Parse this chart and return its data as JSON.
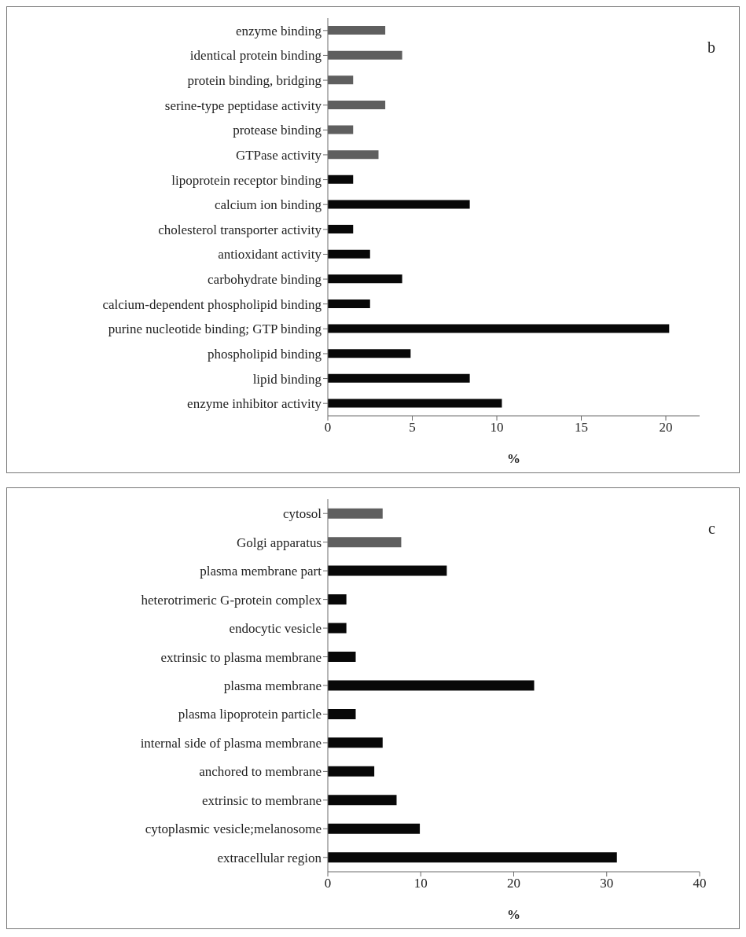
{
  "chart_data": [
    {
      "type": "bar",
      "orientation": "horizontal",
      "xlabel": "%",
      "annotations": [
        "b"
      ],
      "categories": [
        "enzyme binding",
        "identical protein binding",
        "protein binding, bridging",
        "serine-type peptidase activity",
        "protease binding",
        "GTPase activity",
        "lipoprotein receptor binding",
        "calcium ion binding",
        "cholesterol transporter activity",
        "antioxidant activity",
        "carbohydrate binding",
        "calcium-dependent phospholipid binding",
        "purine nucleotide binding; GTP binding",
        "phospholipid binding",
        "lipid binding",
        "enzyme inhibitor activity"
      ],
      "values": [
        3.4,
        4.4,
        1.5,
        3.4,
        1.5,
        3.0,
        1.5,
        8.4,
        1.5,
        2.5,
        4.4,
        2.5,
        20.2,
        4.9,
        8.4,
        10.3
      ],
      "colors": [
        "#5f5f5f",
        "#5f5f5f",
        "#5f5f5f",
        "#5f5f5f",
        "#5f5f5f",
        "#5f5f5f",
        "#080808",
        "#080808",
        "#080808",
        "#080808",
        "#080808",
        "#080808",
        "#080808",
        "#080808",
        "#080808",
        "#080808"
      ],
      "xlim": [
        0,
        22
      ],
      "xticks": [
        0,
        5,
        10,
        15,
        20
      ]
    },
    {
      "type": "bar",
      "orientation": "horizontal",
      "xlabel": "%",
      "annotations": [
        "c"
      ],
      "categories": [
        "cytosol",
        "Golgi apparatus",
        "plasma membrane part",
        "heterotrimeric G-protein complex",
        "endocytic vesicle",
        "extrinsic to plasma membrane",
        "plasma membrane",
        "plasma lipoprotein particle",
        "internal side of plasma membrane",
        "anchored to membrane",
        "extrinsic to membrane",
        "cytoplasmic vesicle;melanosome",
        "extracellular region"
      ],
      "values": [
        5.9,
        7.9,
        12.8,
        2.0,
        2.0,
        3.0,
        22.2,
        3.0,
        5.9,
        5.0,
        7.4,
        9.9,
        31.1
      ],
      "colors": [
        "#5f5f5f",
        "#5f5f5f",
        "#080808",
        "#080808",
        "#080808",
        "#080808",
        "#080808",
        "#080808",
        "#080808",
        "#080808",
        "#080808",
        "#080808",
        "#080808"
      ],
      "xlim": [
        0,
        40
      ],
      "xticks": [
        0,
        10,
        20,
        30,
        40
      ]
    }
  ]
}
